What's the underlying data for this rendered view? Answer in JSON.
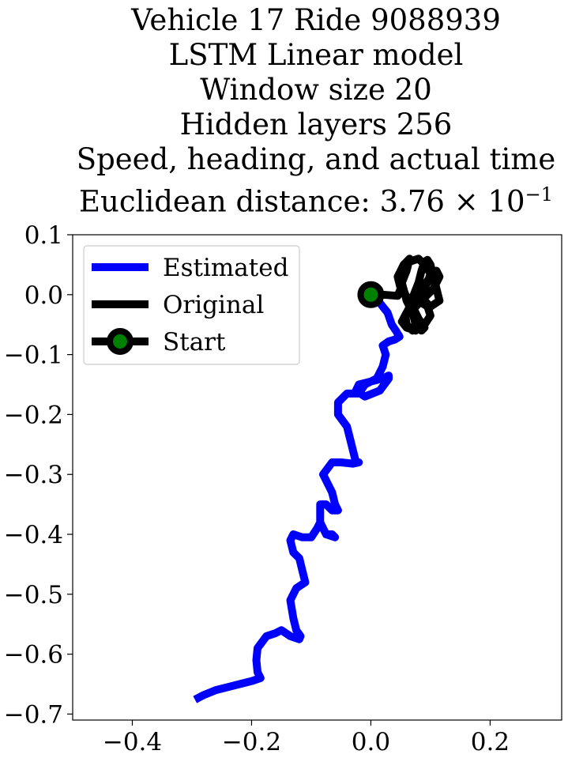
{
  "chart_data": {
    "type": "line",
    "title_lines": [
      "Vehicle 17 Ride 9088939",
      "LSTM Linear model",
      "Window size 20",
      "Hidden layers 256",
      "Speed, heading, and actual time"
    ],
    "distance_label": "Euclidean distance: 3.76",
    "distance_mult": "×",
    "distance_base": "10",
    "distance_exp": "−1",
    "xlabel": "",
    "ylabel": "",
    "xlim": [
      -0.5,
      0.32
    ],
    "ylim": [
      -0.71,
      0.1
    ],
    "xticks": [
      {
        "value": -0.4,
        "label": "−0.4"
      },
      {
        "value": -0.2,
        "label": "−0.2"
      },
      {
        "value": 0.0,
        "label": "0.0"
      },
      {
        "value": 0.2,
        "label": "0.2"
      }
    ],
    "yticks": [
      {
        "value": 0.1,
        "label": "0.1"
      },
      {
        "value": 0.0,
        "label": "0.0"
      },
      {
        "value": -0.1,
        "label": "−0.1"
      },
      {
        "value": -0.2,
        "label": "−0.2"
      },
      {
        "value": -0.3,
        "label": "−0.3"
      },
      {
        "value": -0.4,
        "label": "−0.4"
      },
      {
        "value": -0.5,
        "label": "−0.5"
      },
      {
        "value": -0.6,
        "label": "−0.6"
      },
      {
        "value": -0.7,
        "label": "−0.7"
      }
    ],
    "grid": false,
    "legend_position": "top-left",
    "legend": [
      {
        "label": "Estimated",
        "color": "#0000ff",
        "marker": false
      },
      {
        "label": "Original",
        "color": "#000000",
        "marker": false
      },
      {
        "label": "Start",
        "color": "#000000",
        "marker": true,
        "marker_color": "#008000"
      }
    ],
    "series": [
      {
        "name": "Estimated",
        "color": "#0000ff",
        "x": [
          0.0,
          0.012,
          0.028,
          0.035,
          0.042,
          0.048,
          0.04,
          0.03,
          0.02,
          0.025,
          0.02,
          0.01,
          0.0,
          -0.02,
          -0.025,
          -0.01,
          0.015,
          0.03,
          0.03,
          0.02,
          0.0,
          -0.01,
          -0.02,
          -0.04,
          -0.055,
          -0.055,
          -0.04,
          -0.035,
          -0.03,
          -0.025,
          -0.02,
          -0.03,
          -0.05,
          -0.065,
          -0.08,
          -0.065,
          -0.06,
          -0.055,
          -0.065,
          -0.075,
          -0.085,
          -0.085,
          -0.075,
          -0.065,
          -0.06,
          -0.075,
          -0.08,
          -0.085,
          -0.09,
          -0.1,
          -0.115,
          -0.13,
          -0.135,
          -0.13,
          -0.12,
          -0.115,
          -0.11,
          -0.125,
          -0.135,
          -0.13,
          -0.125,
          -0.118,
          -0.12,
          -0.135,
          -0.15,
          -0.16,
          -0.175,
          -0.19,
          -0.192,
          -0.19,
          -0.185,
          -0.2,
          -0.22,
          -0.24,
          -0.26,
          -0.28,
          -0.295
        ],
        "y": [
          0.0,
          -0.01,
          -0.03,
          -0.05,
          -0.06,
          -0.07,
          -0.075,
          -0.078,
          -0.085,
          -0.1,
          -0.12,
          -0.14,
          -0.145,
          -0.15,
          -0.16,
          -0.17,
          -0.16,
          -0.14,
          -0.135,
          -0.14,
          -0.145,
          -0.15,
          -0.165,
          -0.165,
          -0.18,
          -0.2,
          -0.22,
          -0.24,
          -0.26,
          -0.28,
          -0.28,
          -0.282,
          -0.28,
          -0.28,
          -0.3,
          -0.33,
          -0.35,
          -0.36,
          -0.36,
          -0.35,
          -0.35,
          -0.38,
          -0.4,
          -0.4,
          -0.405,
          -0.4,
          -0.39,
          -0.38,
          -0.39,
          -0.405,
          -0.405,
          -0.4,
          -0.41,
          -0.43,
          -0.44,
          -0.46,
          -0.48,
          -0.49,
          -0.51,
          -0.54,
          -0.56,
          -0.57,
          -0.575,
          -0.57,
          -0.56,
          -0.565,
          -0.57,
          -0.59,
          -0.61,
          -0.63,
          -0.64,
          -0.645,
          -0.65,
          -0.655,
          -0.66,
          -0.668,
          -0.676
        ]
      },
      {
        "name": "Original",
        "color": "#000000",
        "x": [
          0.0,
          0.02,
          0.045,
          0.05,
          0.045,
          0.055,
          0.065,
          0.06,
          0.052,
          0.06,
          0.07,
          0.075,
          0.07,
          0.06,
          0.058,
          0.065,
          0.072,
          0.08,
          0.085,
          0.09,
          0.095,
          0.1,
          0.105,
          0.11,
          0.115,
          0.1,
          0.09,
          0.085,
          0.095,
          0.1,
          0.09,
          0.08,
          0.065,
          0.055,
          0.05,
          0.058,
          0.07,
          0.08,
          0.09,
          0.085,
          0.075,
          0.07,
          0.075,
          0.085,
          0.1,
          0.11,
          0.115,
          0.105,
          0.09,
          0.075,
          0.06,
          0.052,
          0.06,
          0.075,
          0.09,
          0.1,
          0.095,
          0.08,
          0.07,
          0.065
        ],
        "y": [
          0.0,
          0.0,
          -0.002,
          0.01,
          0.03,
          0.05,
          0.06,
          0.04,
          0.02,
          -0.01,
          -0.03,
          -0.05,
          -0.06,
          -0.05,
          -0.035,
          -0.02,
          0.0,
          0.02,
          0.04,
          0.055,
          0.058,
          0.05,
          0.03,
          0.01,
          -0.01,
          -0.02,
          -0.01,
          0.005,
          0.02,
          0.035,
          0.05,
          0.06,
          0.055,
          0.04,
          0.02,
          0.0,
          -0.02,
          -0.04,
          -0.055,
          -0.06,
          -0.05,
          -0.03,
          -0.01,
          0.01,
          0.03,
          0.04,
          0.03,
          0.01,
          -0.005,
          -0.02,
          -0.03,
          -0.045,
          -0.055,
          -0.06,
          -0.05,
          -0.035,
          -0.02,
          -0.01,
          -0.005,
          0.0
        ]
      }
    ],
    "start_point": {
      "x": 0.0,
      "y": 0.0
    }
  }
}
